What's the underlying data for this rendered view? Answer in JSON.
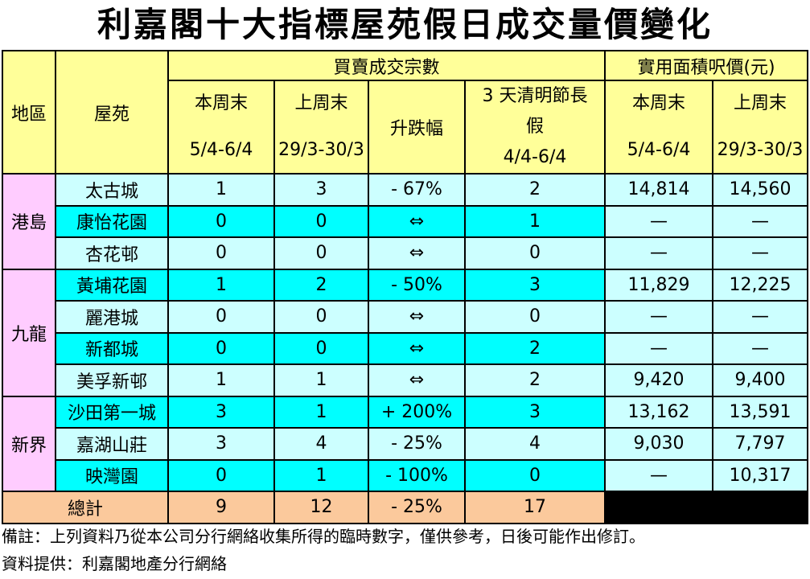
{
  "title": "利嘉閣十大指標屋苑假日成交量價變化",
  "headers": {
    "region": "地區",
    "estate": "屋苑",
    "transactions_group": "買賣成交宗數",
    "price_group": "實用面積呎價(元)",
    "this_weekend": "本周末",
    "this_weekend_dates": "5/4-6/4",
    "last_weekend": "上周末",
    "last_weekend_dates": "29/3-30/3",
    "change": "升跌幅",
    "holiday": "3 天清明節長假",
    "holiday_dates": "4/4-6/4",
    "price_this_weekend": "本周末",
    "price_this_weekend_dates": "5/4-6/4",
    "price_last_weekend": "上周末",
    "price_last_weekend_dates": "29/3-30/3"
  },
  "regions": [
    {
      "name": "港島",
      "rows": [
        {
          "estate": "太古城",
          "this_week": "1",
          "last_week": "3",
          "change": "- 67%",
          "holiday": "2",
          "price_this": "14,814",
          "price_last": "14,560"
        },
        {
          "estate": "康怡花園",
          "this_week": "0",
          "last_week": "0",
          "change": "⇔",
          "holiday": "1",
          "price_this": "—",
          "price_last": "—"
        },
        {
          "estate": "杏花邨",
          "this_week": "0",
          "last_week": "0",
          "change": "⇔",
          "holiday": "0",
          "price_this": "—",
          "price_last": "—"
        }
      ]
    },
    {
      "name": "九龍",
      "rows": [
        {
          "estate": "黃埔花園",
          "this_week": "1",
          "last_week": "2",
          "change": "- 50%",
          "holiday": "3",
          "price_this": "11,829",
          "price_last": "12,225"
        },
        {
          "estate": "麗港城",
          "this_week": "0",
          "last_week": "0",
          "change": "⇔",
          "holiday": "0",
          "price_this": "—",
          "price_last": "—"
        },
        {
          "estate": "新都城",
          "this_week": "0",
          "last_week": "0",
          "change": "⇔",
          "holiday": "2",
          "price_this": "—",
          "price_last": "—"
        },
        {
          "estate": "美孚新邨",
          "this_week": "1",
          "last_week": "1",
          "change": "⇔",
          "holiday": "2",
          "price_this": "9,420",
          "price_last": "9,400"
        }
      ]
    },
    {
      "name": "新界",
      "rows": [
        {
          "estate": "沙田第一城",
          "this_week": "3",
          "last_week": "1",
          "change": "+ 200%",
          "holiday": "3",
          "price_this": "13,162",
          "price_last": "13,591"
        },
        {
          "estate": "嘉湖山莊",
          "this_week": "3",
          "last_week": "4",
          "change": "- 25%",
          "holiday": "4",
          "price_this": "9,030",
          "price_last": "7,797"
        },
        {
          "estate": "映灣園",
          "this_week": "0",
          "last_week": "1",
          "change": "- 100%",
          "holiday": "0",
          "price_this": "—",
          "price_last": "10,317"
        }
      ]
    }
  ],
  "total": {
    "label": "總計",
    "this_week": "9",
    "last_week": "12",
    "change": "- 25%",
    "holiday": "17"
  },
  "notes": {
    "remark": "備註：上列資料乃從本公司分行網絡收集所得的臨時數字，僅供參考，日後可能作出修訂。",
    "source": "資料提供：利嘉閣地產分行網絡"
  },
  "colors": {
    "header": "#ffff99",
    "region": "#ffccff",
    "row_light": "#ccffff",
    "row_cyan": "#00ffff",
    "total": "#fbc99c"
  }
}
